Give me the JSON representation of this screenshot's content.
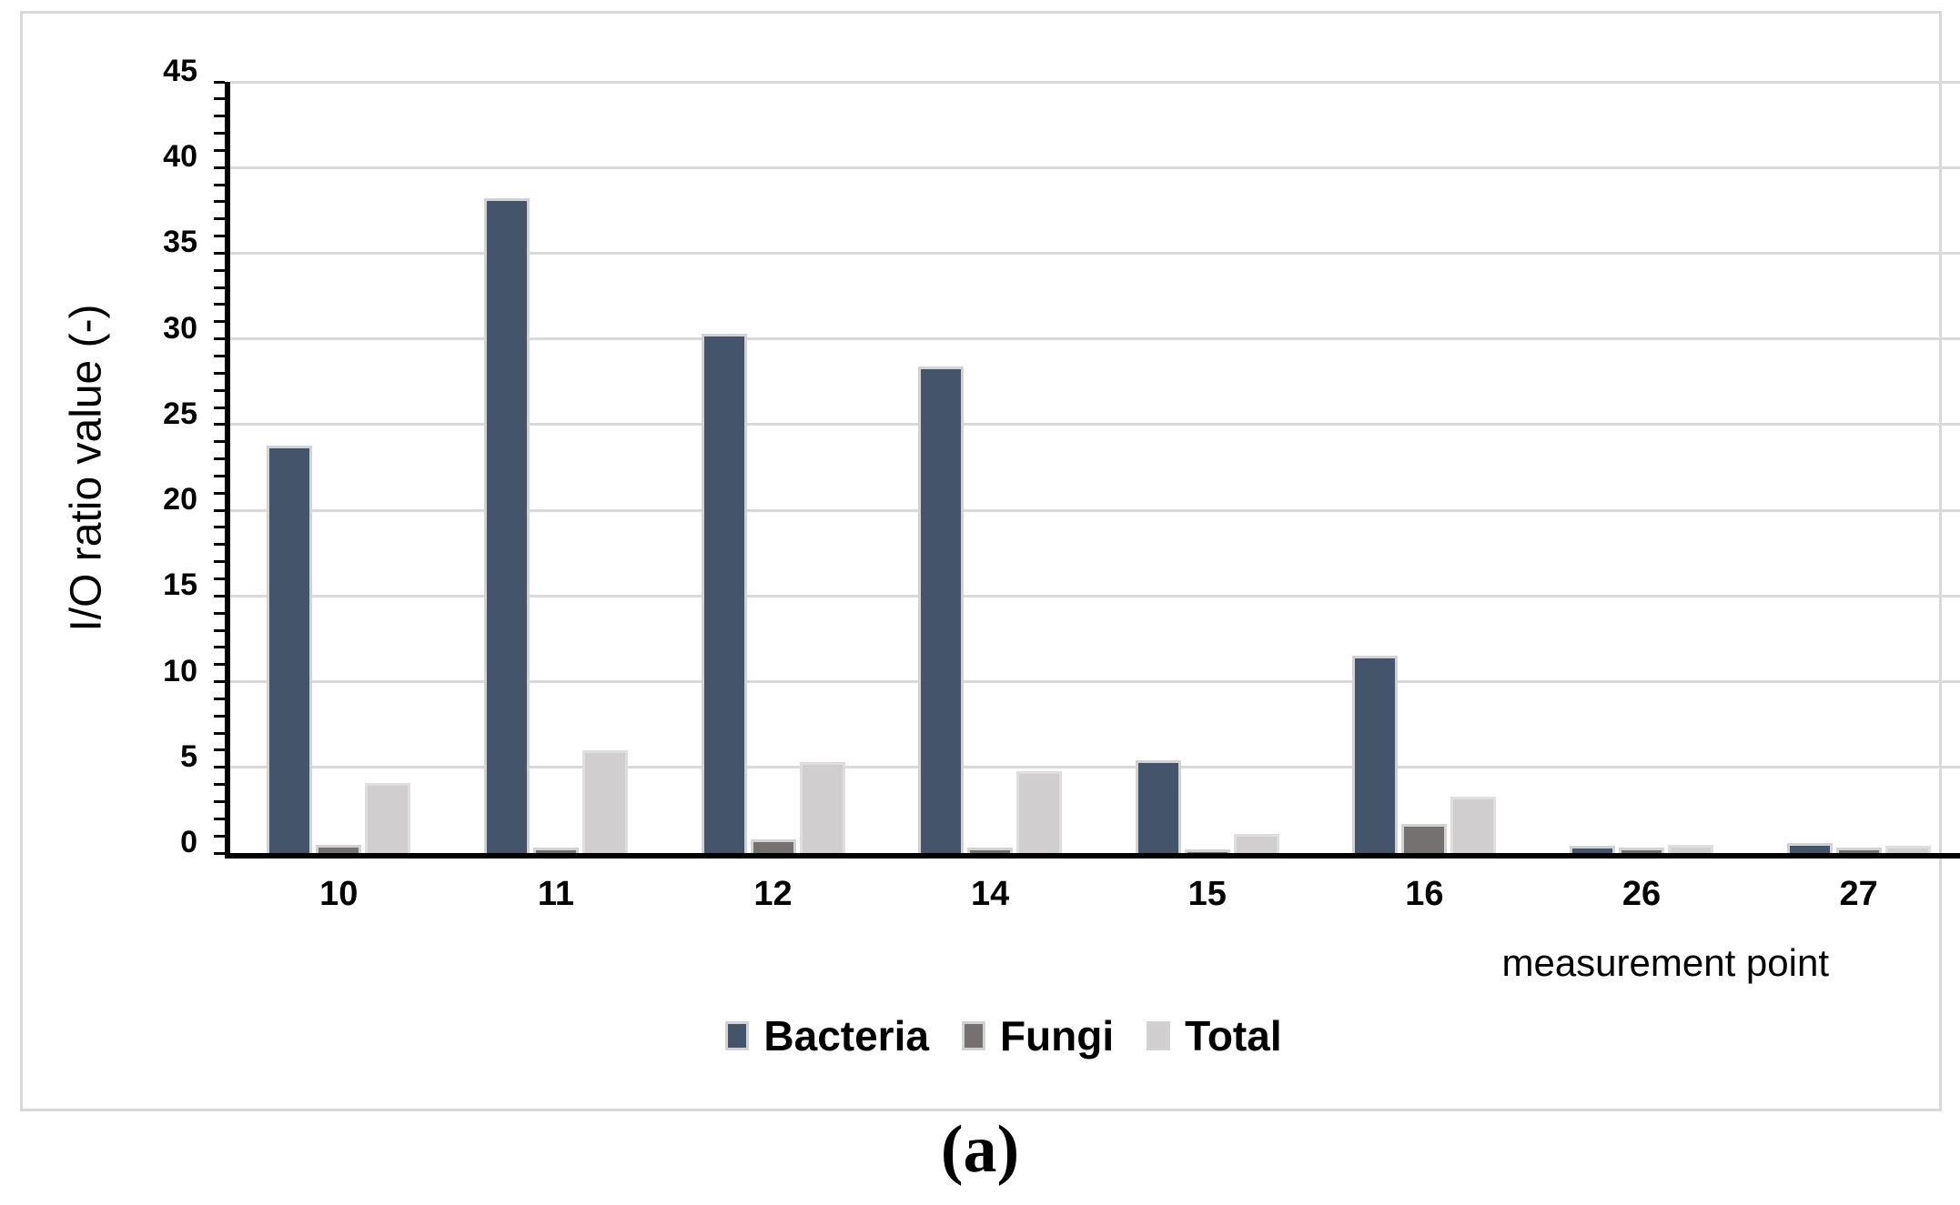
{
  "figure": {
    "caption": "(a)"
  },
  "chart_data": {
    "type": "bar",
    "title": "",
    "xlabel": "measurement point",
    "ylabel": "I/O ratio value (-)",
    "categories": [
      "10",
      "11",
      "12",
      "14",
      "15",
      "16",
      "26",
      "27"
    ],
    "series": [
      {
        "name": "Bacteria",
        "color": "#44546A",
        "border": "#D2D2D2",
        "values": [
          23.8,
          38.2,
          30.3,
          28.4,
          5.4,
          11.5,
          0.4,
          0.6
        ]
      },
      {
        "name": "Fungi",
        "color": "#767171",
        "border": "#D2D2D2",
        "values": [
          0.5,
          0.3,
          0.8,
          0.3,
          0.2,
          1.7,
          0.3,
          0.3
        ]
      },
      {
        "name": "Total",
        "color": "#D0CECE",
        "border": "#DEDEDE",
        "values": [
          4.1,
          6.0,
          5.3,
          4.8,
          1.1,
          3.3,
          0.5,
          0.4
        ]
      }
    ],
    "ylim": [
      0,
      45
    ],
    "yticks": [
      0,
      5,
      10,
      15,
      20,
      25,
      30,
      35,
      40,
      45
    ],
    "ytick_step": 5,
    "minor_tick_step": 1,
    "grid": true,
    "legend_position": "bottom",
    "legend_entries": [
      "Bacteria",
      "Fungi",
      "Total"
    ]
  },
  "colors": {
    "axis": "#000000",
    "gridline": "#D9D9D9",
    "frame": "#D9D9D9",
    "background": "#FFFFFF"
  }
}
